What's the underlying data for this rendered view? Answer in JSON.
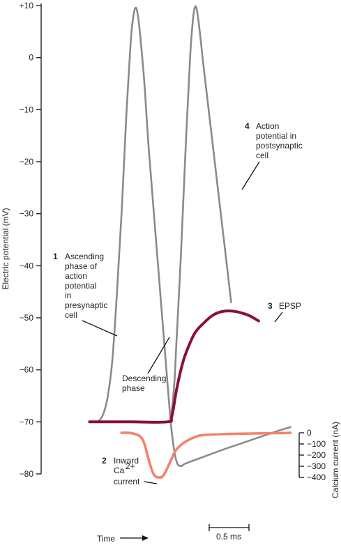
{
  "chart_data": {
    "type": "line",
    "left_axis": {
      "label": "Electric potential (mV)",
      "ticks": [
        "+10",
        "0",
        "−10",
        "−20",
        "−30",
        "−40",
        "−50",
        "−60",
        "−70",
        "−80"
      ],
      "tick_values": [
        10,
        0,
        -10,
        -20,
        -30,
        -40,
        -50,
        -60,
        -70,
        -80
      ],
      "ylim": [
        -80,
        10
      ]
    },
    "right_axis": {
      "label": "Calcium current (nA)",
      "ticks": [
        "0",
        "−100",
        "−200",
        "−300",
        "−400"
      ],
      "tick_values": [
        0,
        -100,
        -200,
        -300,
        -400
      ],
      "ylim": [
        -400,
        0
      ]
    },
    "x_axis": {
      "label": "Time",
      "scale_bar_label": "0.5 ms",
      "range_ms": [
        0,
        2.2
      ]
    },
    "series": [
      {
        "id": "presynaptic",
        "axis": "left",
        "color": "#8a8a8a",
        "points": [
          [
            0,
            -70
          ],
          [
            0.05,
            -69.8
          ],
          [
            0.1,
            -68.5
          ],
          [
            0.15,
            -65
          ],
          [
            0.2,
            -58
          ],
          [
            0.25,
            -45
          ],
          [
            0.3,
            -30
          ],
          [
            0.35,
            -12
          ],
          [
            0.4,
            3
          ],
          [
            0.43,
            8
          ],
          [
            0.45,
            9.5
          ],
          [
            0.47,
            9
          ],
          [
            0.5,
            5
          ],
          [
            0.55,
            -5
          ],
          [
            0.6,
            -18
          ],
          [
            0.7,
            -40
          ],
          [
            0.8,
            -62
          ],
          [
            0.85,
            -72
          ],
          [
            0.9,
            -77.5
          ],
          [
            0.95,
            -78.5
          ],
          [
            1.0,
            -78
          ],
          [
            1.2,
            -76.7
          ],
          [
            1.4,
            -75.4
          ],
          [
            1.6,
            -74.2
          ],
          [
            1.8,
            -73
          ],
          [
            2.0,
            -71.8
          ],
          [
            2.15,
            -71
          ]
        ]
      },
      {
        "id": "postsynaptic",
        "axis": "left",
        "color": "#8a8a8a",
        "points": [
          [
            0.83,
            -70
          ],
          [
            0.85,
            -68
          ],
          [
            0.88,
            -62
          ],
          [
            0.9,
            -55
          ],
          [
            0.95,
            -38
          ],
          [
            1.0,
            -18
          ],
          [
            1.05,
            0
          ],
          [
            1.08,
            7
          ],
          [
            1.1,
            9.5
          ],
          [
            1.12,
            9.5
          ],
          [
            1.15,
            6
          ],
          [
            1.2,
            -2
          ],
          [
            1.3,
            -17
          ],
          [
            1.4,
            -32
          ],
          [
            1.5,
            -47
          ]
        ]
      },
      {
        "id": "epsp",
        "axis": "left",
        "color": "#8a0f3a",
        "points": [
          [
            -0.05,
            -70
          ],
          [
            0.4,
            -70
          ],
          [
            0.8,
            -70
          ],
          [
            0.85,
            -69
          ],
          [
            0.9,
            -64
          ],
          [
            0.95,
            -60
          ],
          [
            1.0,
            -57
          ],
          [
            1.1,
            -53
          ],
          [
            1.2,
            -51
          ],
          [
            1.3,
            -49.5
          ],
          [
            1.4,
            -48.8
          ],
          [
            1.5,
            -48.7
          ],
          [
            1.6,
            -49
          ],
          [
            1.7,
            -49.6
          ],
          [
            1.8,
            -50.6
          ]
        ]
      },
      {
        "id": "calcium",
        "axis": "right",
        "color": "#f4826a",
        "points": [
          [
            0.3,
            0
          ],
          [
            0.4,
            -2
          ],
          [
            0.5,
            -30
          ],
          [
            0.55,
            -100
          ],
          [
            0.6,
            -250
          ],
          [
            0.65,
            -370
          ],
          [
            0.7,
            -400
          ],
          [
            0.75,
            -390
          ],
          [
            0.8,
            -320
          ],
          [
            0.85,
            -230
          ],
          [
            0.9,
            -150
          ],
          [
            1.0,
            -80
          ],
          [
            1.1,
            -40
          ],
          [
            1.2,
            -20
          ],
          [
            1.5,
            -10
          ],
          [
            2.0,
            -3
          ],
          [
            2.15,
            0
          ]
        ]
      }
    ],
    "annotations": [
      {
        "number": "1",
        "lines": [
          "Ascending",
          "phase of",
          "action",
          "potential",
          "in",
          "presynaptic",
          "cell"
        ]
      },
      {
        "number": "",
        "lines": [
          "Descending",
          "phase"
        ]
      },
      {
        "number": "2",
        "lines": [
          "Inward",
          "Ca",
          "current"
        ],
        "superscript": "2+"
      },
      {
        "number": "3",
        "lines": [
          "EPSP"
        ]
      },
      {
        "number": "4",
        "lines": [
          "Action",
          "potential in",
          "postsynaptic",
          "cell"
        ]
      }
    ]
  }
}
